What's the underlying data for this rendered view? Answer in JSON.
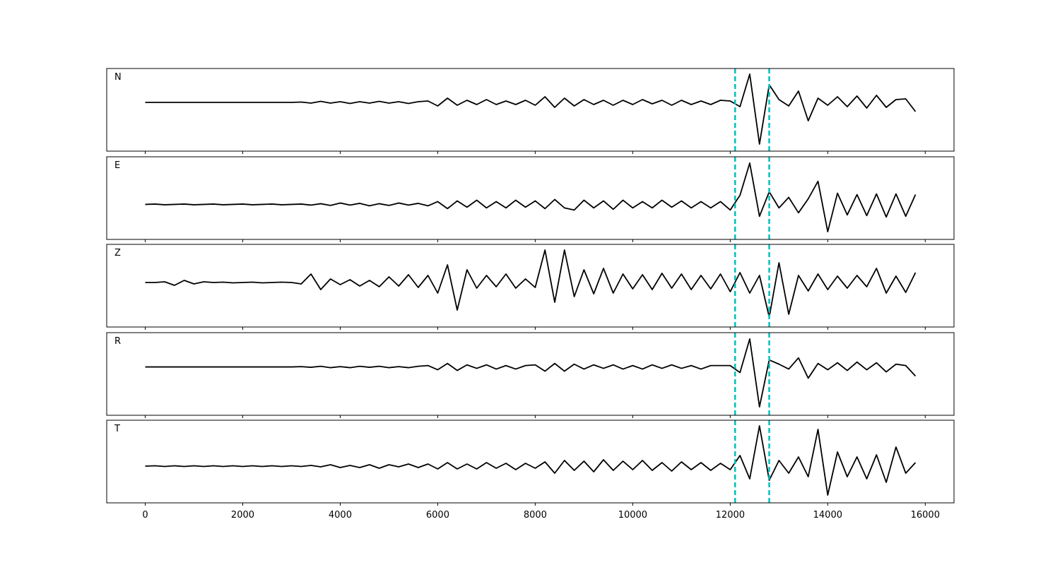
{
  "chart_data": {
    "type": "line",
    "x": [
      0,
      200,
      400,
      600,
      800,
      1000,
      1200,
      1400,
      1600,
      1800,
      2000,
      2200,
      2400,
      2600,
      2800,
      3000,
      3200,
      3400,
      3600,
      3800,
      4000,
      4200,
      4400,
      4600,
      4800,
      5000,
      5200,
      5400,
      5600,
      5800,
      6000,
      6200,
      6400,
      6600,
      6800,
      7000,
      7200,
      7400,
      7600,
      7800,
      8000,
      8200,
      8400,
      8600,
      8800,
      9000,
      9200,
      9400,
      9600,
      9800,
      10000,
      10200,
      10400,
      10600,
      10800,
      11000,
      11200,
      11400,
      11600,
      11800,
      12000,
      12200,
      12400,
      12600,
      12800,
      13000,
      13200,
      13400,
      13600,
      13800,
      14000,
      14200,
      14400,
      14600,
      14800,
      15000,
      15200,
      15400,
      15600,
      15800
    ],
    "xlim": [
      -790,
      16590
    ],
    "xticks": [
      0,
      2000,
      4000,
      6000,
      8000,
      10000,
      12000,
      14000,
      16000
    ],
    "vlines": [
      12100,
      12800
    ],
    "vline_color": "#00bfbf",
    "series": [
      {
        "name": "N",
        "color": "#000000",
        "ylim": [
          -6.9,
          4.8
        ],
        "values": [
          0,
          0,
          0,
          0,
          0,
          0,
          0,
          0,
          0,
          0,
          0,
          0,
          0,
          0,
          0,
          0,
          0.05,
          -0.1,
          0.15,
          -0.1,
          0.1,
          -0.15,
          0.1,
          -0.1,
          0.15,
          -0.1,
          0.1,
          -0.15,
          0.1,
          0.2,
          -0.5,
          0.6,
          -0.4,
          0.3,
          -0.3,
          0.4,
          -0.3,
          0.2,
          -0.3,
          0.3,
          -0.4,
          0.8,
          -0.7,
          0.6,
          -0.5,
          0.4,
          -0.3,
          0.3,
          -0.4,
          0.3,
          -0.3,
          0.4,
          -0.2,
          0.3,
          -0.4,
          0.3,
          -0.3,
          0.2,
          -0.3,
          0.3,
          0.2,
          -0.6,
          4.0,
          -5.9,
          2.5,
          0.4,
          -0.5,
          1.6,
          -2.6,
          0.6,
          -0.4,
          0.8,
          -0.6,
          0.9,
          -0.8,
          1.0,
          -0.7,
          0.4,
          0.5,
          -1.3
        ]
      },
      {
        "name": "E",
        "color": "#000000",
        "ylim": [
          -5.0,
          6.8
        ],
        "values": [
          0,
          0.05,
          -0.05,
          0,
          0.05,
          -0.05,
          0,
          0.05,
          -0.05,
          0,
          0.05,
          -0.05,
          0,
          0.05,
          -0.05,
          0,
          0.05,
          -0.1,
          0.1,
          -0.15,
          0.2,
          -0.1,
          0.15,
          -0.2,
          0.1,
          -0.15,
          0.2,
          -0.1,
          0.15,
          -0.2,
          0.4,
          -0.6,
          0.5,
          -0.4,
          0.6,
          -0.5,
          0.4,
          -0.5,
          0.6,
          -0.4,
          0.5,
          -0.6,
          0.7,
          -0.5,
          -0.8,
          0.6,
          -0.5,
          0.5,
          -0.7,
          0.6,
          -0.5,
          0.4,
          -0.5,
          0.6,
          -0.4,
          0.5,
          -0.5,
          0.4,
          -0.5,
          0.4,
          -0.8,
          1.3,
          5.9,
          -1.7,
          1.8,
          -0.5,
          1.0,
          -1.2,
          0.8,
          3.3,
          -3.9,
          1.6,
          -1.5,
          1.4,
          -1.6,
          1.5,
          -1.8,
          1.5,
          -1.7,
          1.4
        ]
      },
      {
        "name": "Z",
        "color": "#000000",
        "ylim": [
          -6.3,
          5.4
        ],
        "values": [
          0,
          0,
          0.1,
          -0.4,
          0.3,
          -0.2,
          0.1,
          0,
          0.05,
          -0.05,
          0,
          0.05,
          -0.05,
          0,
          0.05,
          0,
          -0.2,
          1.2,
          -1.0,
          0.5,
          -0.3,
          0.4,
          -0.5,
          0.3,
          -0.6,
          0.8,
          -0.5,
          1.1,
          -0.7,
          1.0,
          -1.5,
          2.5,
          -3.9,
          1.8,
          -0.8,
          1.0,
          -0.6,
          1.2,
          -0.8,
          0.5,
          -0.7,
          4.6,
          -2.8,
          4.6,
          -2.0,
          1.8,
          -1.6,
          2.0,
          -1.5,
          1.2,
          -0.9,
          1.1,
          -1.0,
          1.3,
          -0.8,
          1.2,
          -1.0,
          1.0,
          -0.9,
          1.2,
          -1.3,
          1.4,
          -1.5,
          1.0,
          -4.9,
          2.8,
          -4.5,
          1.0,
          -1.2,
          1.2,
          -1.0,
          0.9,
          -0.8,
          1.0,
          -0.6,
          2.0,
          -1.5,
          0.9,
          -1.4,
          1.4
        ]
      },
      {
        "name": "R",
        "color": "#000000",
        "ylim": [
          -6.9,
          4.9
        ],
        "values": [
          0,
          0,
          0,
          0,
          0,
          0,
          0,
          0,
          0,
          0,
          0,
          0,
          0,
          0,
          0,
          0,
          0.05,
          -0.05,
          0.1,
          -0.1,
          0.05,
          -0.1,
          0.1,
          -0.05,
          0.1,
          -0.1,
          0.05,
          -0.1,
          0.1,
          0.2,
          -0.4,
          0.5,
          -0.5,
          0.3,
          -0.2,
          0.3,
          -0.3,
          0.2,
          -0.3,
          0.2,
          0.3,
          -0.6,
          0.5,
          -0.6,
          0.4,
          -0.3,
          0.3,
          -0.2,
          0.3,
          -0.3,
          0.2,
          -0.3,
          0.3,
          -0.2,
          0.3,
          -0.2,
          0.2,
          -0.3,
          0.2,
          0.2,
          0.2,
          -0.8,
          4.0,
          -5.7,
          1.0,
          0.4,
          -0.3,
          1.3,
          -1.6,
          0.5,
          -0.4,
          0.6,
          -0.5,
          0.7,
          -0.4,
          0.6,
          -0.7,
          0.4,
          0.2,
          -1.3
        ]
      },
      {
        "name": "T",
        "color": "#000000",
        "ylim": [
          -5.2,
          6.5
        ],
        "values": [
          0,
          0.05,
          -0.05,
          0.05,
          -0.05,
          0.05,
          -0.05,
          0.05,
          -0.05,
          0.05,
          -0.05,
          0.05,
          -0.05,
          0.05,
          -0.05,
          0.05,
          -0.05,
          0.1,
          -0.1,
          0.2,
          -0.2,
          0.1,
          -0.2,
          0.2,
          -0.3,
          0.2,
          -0.1,
          0.3,
          -0.2,
          0.3,
          -0.4,
          0.5,
          -0.4,
          0.3,
          -0.4,
          0.5,
          -0.3,
          0.4,
          -0.5,
          0.4,
          -0.3,
          0.6,
          -1.0,
          0.8,
          -0.6,
          0.7,
          -0.8,
          0.9,
          -0.6,
          0.7,
          -0.5,
          0.8,
          -0.6,
          0.5,
          -0.7,
          0.6,
          -0.5,
          0.5,
          -0.6,
          0.4,
          -0.5,
          1.5,
          -1.8,
          5.7,
          -2.0,
          0.8,
          -1.0,
          1.3,
          -1.5,
          5.2,
          -4.1,
          2.0,
          -1.5,
          1.3,
          -1.8,
          1.6,
          -2.3,
          2.7,
          -1.0,
          0.5
        ]
      }
    ]
  }
}
